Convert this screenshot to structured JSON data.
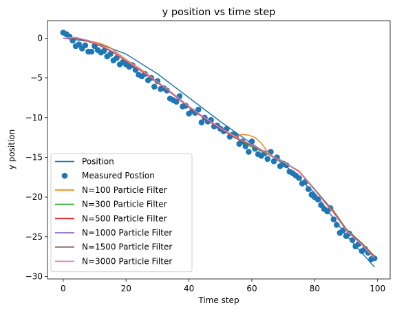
{
  "chart_data": {
    "type": "line",
    "title": "y position vs time step",
    "xlabel": "Time step",
    "ylabel": "y position",
    "xlim": [
      -5,
      104
    ],
    "ylim": [
      -30.3,
      2.2
    ],
    "xticks": [
      0,
      20,
      40,
      60,
      80,
      100
    ],
    "xtick_labels": [
      "0",
      "20",
      "40",
      "60",
      "80",
      "100"
    ],
    "yticks": [
      0,
      -5,
      -10,
      -15,
      -20,
      -25,
      -30
    ],
    "ytick_labels": [
      "0",
      "−5",
      "−10",
      "−15",
      "−20",
      "−25",
      "−30"
    ],
    "grid": false,
    "legend_position": "lower-left",
    "position": {
      "name": "Position",
      "color": "#1f77b4",
      "x": [
        0,
        10,
        20,
        30,
        40,
        50,
        60,
        70,
        80,
        90,
        99
      ],
      "y": [
        0,
        -0.5,
        -2.0,
        -4.5,
        -7.5,
        -10.5,
        -13.3,
        -15.8,
        -19.5,
        -24.8,
        -28.8
      ]
    },
    "measured": {
      "name": "Measured Postion",
      "color": "#1f77b4",
      "x": [
        0,
        1,
        2,
        3,
        4,
        5,
        6,
        7,
        8,
        9,
        10,
        11,
        12,
        13,
        14,
        15,
        16,
        17,
        18,
        19,
        20,
        21,
        22,
        23,
        24,
        25,
        26,
        27,
        28,
        29,
        30,
        31,
        32,
        33,
        34,
        35,
        36,
        37,
        38,
        39,
        40,
        41,
        42,
        43,
        44,
        45,
        46,
        47,
        48,
        49,
        50,
        51,
        52,
        53,
        54,
        55,
        56,
        57,
        58,
        59,
        60,
        61,
        62,
        63,
        64,
        65,
        66,
        67,
        68,
        69,
        70,
        71,
        72,
        73,
        74,
        75,
        76,
        77,
        78,
        79,
        80,
        81,
        82,
        83,
        84,
        85,
        86,
        87,
        88,
        89,
        90,
        91,
        92,
        93,
        94,
        95,
        96,
        97,
        98,
        99
      ],
      "y": [
        0.7,
        0.5,
        0.2,
        -0.3,
        -1.0,
        -0.8,
        -1.3,
        -0.9,
        -1.7,
        -1.7,
        -1.0,
        -1.5,
        -1.8,
        -1.6,
        -2.3,
        -2.0,
        -2.8,
        -2.5,
        -3.3,
        -3.0,
        -3.3,
        -3.6,
        -3.4,
        -4.0,
        -4.6,
        -4.8,
        -4.5,
        -5.3,
        -5.0,
        -6.1,
        -5.4,
        -6.4,
        -6.3,
        -6.6,
        -7.6,
        -7.8,
        -8.0,
        -7.3,
        -8.6,
        -8.5,
        -9.5,
        -9.2,
        -9.4,
        -9.0,
        -10.6,
        -10.0,
        -10.5,
        -10.3,
        -11.1,
        -11.0,
        -11.4,
        -11.7,
        -11.4,
        -12.4,
        -12.1,
        -12.3,
        -13.3,
        -13.0,
        -13.6,
        -14.3,
        -13.0,
        -13.9,
        -14.6,
        -14.8,
        -14.5,
        -15.2,
        -14.3,
        -15.5,
        -15.0,
        -16.1,
        -15.8,
        -16.0,
        -16.8,
        -17.0,
        -17.3,
        -17.6,
        -18.3,
        -18.1,
        -19.0,
        -19.7,
        -20.0,
        -20.3,
        -21.0,
        -21.5,
        -21.8,
        -21.4,
        -22.8,
        -23.5,
        -24.5,
        -24.2,
        -24.9,
        -24.6,
        -25.4,
        -26.2,
        -25.9,
        -26.8,
        -26.5,
        -27.0,
        -27.8,
        -27.7
      ]
    },
    "filters": [
      {
        "name": "N=100 Particle Filter",
        "color": "#ff7f0e",
        "x": [
          0,
          4,
          8,
          12,
          15,
          17,
          20,
          25,
          30,
          35,
          40,
          45,
          50,
          55,
          57,
          59,
          61,
          63,
          65,
          67,
          70,
          75,
          80,
          83,
          86,
          90,
          95,
          99
        ],
        "y": [
          0,
          0,
          -0.3,
          -0.7,
          -1.2,
          -1.8,
          -2.7,
          -4.0,
          -5.5,
          -7.1,
          -8.7,
          -10.1,
          -11.3,
          -12.4,
          -12.1,
          -12.2,
          -12.5,
          -13.2,
          -14.3,
          -15.0,
          -15.6,
          -16.7,
          -19.0,
          -20.5,
          -21.7,
          -24.0,
          -25.8,
          -27.4
        ]
      },
      {
        "name": "N=300 Particle Filter",
        "color": "#2ca02c",
        "x": [
          0,
          4,
          8,
          12,
          16,
          20,
          25,
          30,
          35,
          40,
          45,
          50,
          55,
          60,
          63,
          65,
          70,
          75,
          80,
          83,
          86,
          90,
          95,
          99
        ],
        "y": [
          0,
          0,
          -0.4,
          -1.0,
          -1.8,
          -2.8,
          -4.1,
          -5.5,
          -7.0,
          -8.6,
          -10.0,
          -11.3,
          -12.6,
          -13.7,
          -14.2,
          -14.6,
          -15.5,
          -16.8,
          -19.0,
          -20.4,
          -21.8,
          -24.0,
          -25.8,
          -27.5
        ]
      },
      {
        "name": "N=500 Particle Filter",
        "color": "#d62728",
        "x": [
          0,
          4,
          8,
          12,
          16,
          20,
          25,
          30,
          35,
          40,
          45,
          50,
          55,
          60,
          65,
          70,
          75,
          80,
          83,
          86,
          90,
          95,
          99
        ],
        "y": [
          0,
          0,
          -0.4,
          -1.0,
          -1.8,
          -2.8,
          -4.1,
          -5.6,
          -7.1,
          -8.7,
          -10.1,
          -11.4,
          -12.6,
          -13.5,
          -14.5,
          -15.6,
          -16.8,
          -19.1,
          -20.5,
          -21.9,
          -24.1,
          -25.9,
          -27.6
        ]
      },
      {
        "name": "N=1000 Particle Filter",
        "color": "#9467bd",
        "x": [
          0,
          4,
          8,
          12,
          16,
          20,
          25,
          30,
          35,
          40,
          45,
          50,
          55,
          60,
          65,
          70,
          75,
          80,
          83,
          86,
          90,
          95,
          99
        ],
        "y": [
          0,
          0,
          -0.4,
          -1.0,
          -1.8,
          -2.9,
          -4.2,
          -5.6,
          -7.1,
          -8.7,
          -10.1,
          -11.4,
          -12.6,
          -13.5,
          -14.5,
          -15.6,
          -16.8,
          -19.1,
          -20.6,
          -21.9,
          -24.1,
          -25.9,
          -27.6
        ]
      },
      {
        "name": "N=1500 Particle Filter",
        "color": "#8c564b",
        "x": [
          0,
          4,
          8,
          12,
          16,
          20,
          25,
          30,
          35,
          40,
          45,
          50,
          55,
          60,
          65,
          70,
          75,
          80,
          83,
          86,
          90,
          95,
          99
        ],
        "y": [
          0,
          0,
          -0.4,
          -1.0,
          -1.8,
          -2.9,
          -4.2,
          -5.6,
          -7.1,
          -8.7,
          -10.1,
          -11.4,
          -12.6,
          -13.5,
          -14.5,
          -15.6,
          -16.8,
          -19.1,
          -20.6,
          -21.9,
          -24.1,
          -25.9,
          -27.6
        ]
      },
      {
        "name": "N=3000 Particle Filter",
        "color": "#e377c2",
        "x": [
          0,
          4,
          8,
          12,
          16,
          20,
          25,
          30,
          35,
          40,
          45,
          50,
          55,
          60,
          65,
          70,
          75,
          80,
          83,
          86,
          90,
          95,
          99
        ],
        "y": [
          0,
          0.1,
          -0.3,
          -0.9,
          -1.7,
          -2.8,
          -4.1,
          -5.5,
          -7.0,
          -8.6,
          -10.0,
          -11.3,
          -12.5,
          -13.4,
          -14.5,
          -15.6,
          -16.8,
          -19.1,
          -20.6,
          -22.0,
          -24.2,
          -26.0,
          -27.7
        ]
      }
    ]
  }
}
